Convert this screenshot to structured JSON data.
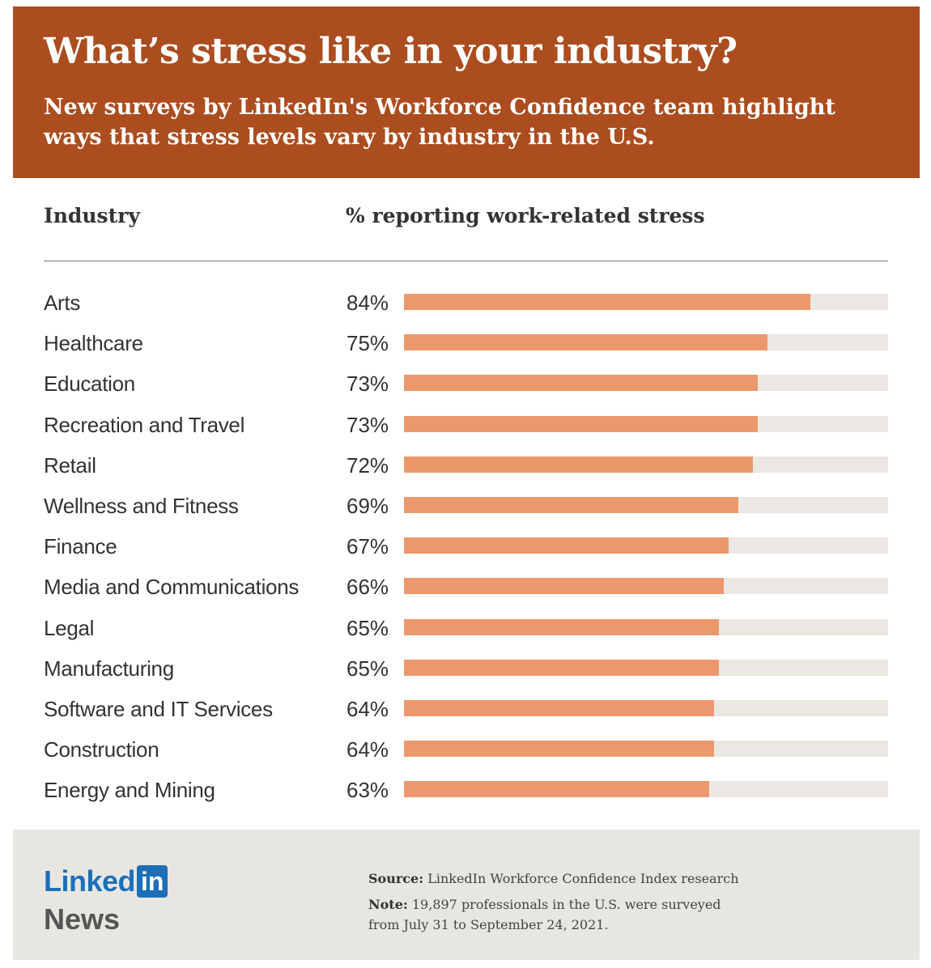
{
  "header": {
    "title": "What’s stress like in your industry?",
    "subtitle": "New surveys by LinkedIn's Workforce Confidence team highlight ways that stress levels vary by industry in the U.S."
  },
  "columns": {
    "industry": "Industry",
    "percent": "% reporting work-related stress"
  },
  "colors": {
    "header_bg": "#ab4d1f",
    "bar_fill": "#eb996c",
    "bar_track": "#ebe8e3",
    "footer_bg": "#e8e6e1",
    "brand_blue": "#1d6fb8"
  },
  "chart_data": {
    "type": "bar",
    "orientation": "horizontal",
    "title": "What’s stress like in your industry?",
    "xlabel": "% reporting work-related stress",
    "ylabel": "Industry",
    "xlim": [
      0,
      100
    ],
    "grid": false,
    "categories": [
      "Arts",
      "Healthcare",
      "Education",
      "Recreation and Travel",
      "Retail",
      "Wellness and Fitness",
      "Finance",
      "Media and Communications",
      "Legal",
      "Manufacturing",
      "Software and IT Services",
      "Construction",
      "Energy and Mining"
    ],
    "values": [
      84,
      75,
      73,
      73,
      72,
      69,
      67,
      66,
      65,
      65,
      64,
      64,
      63
    ],
    "value_labels": [
      "84%",
      "75%",
      "73%",
      "73%",
      "72%",
      "69%",
      "67%",
      "66%",
      "65%",
      "65%",
      "64%",
      "64%",
      "63%"
    ]
  },
  "footer": {
    "logo_text": "Linked",
    "logo_box": "in",
    "logo_sub": "News",
    "source_label": "Source:",
    "source_text": " LinkedIn Workforce Confidence Index research",
    "note_label": "Note:",
    "note_text": " 19,897 professionals in the U.S. were surveyed from July 31 to September 24, 2021."
  }
}
